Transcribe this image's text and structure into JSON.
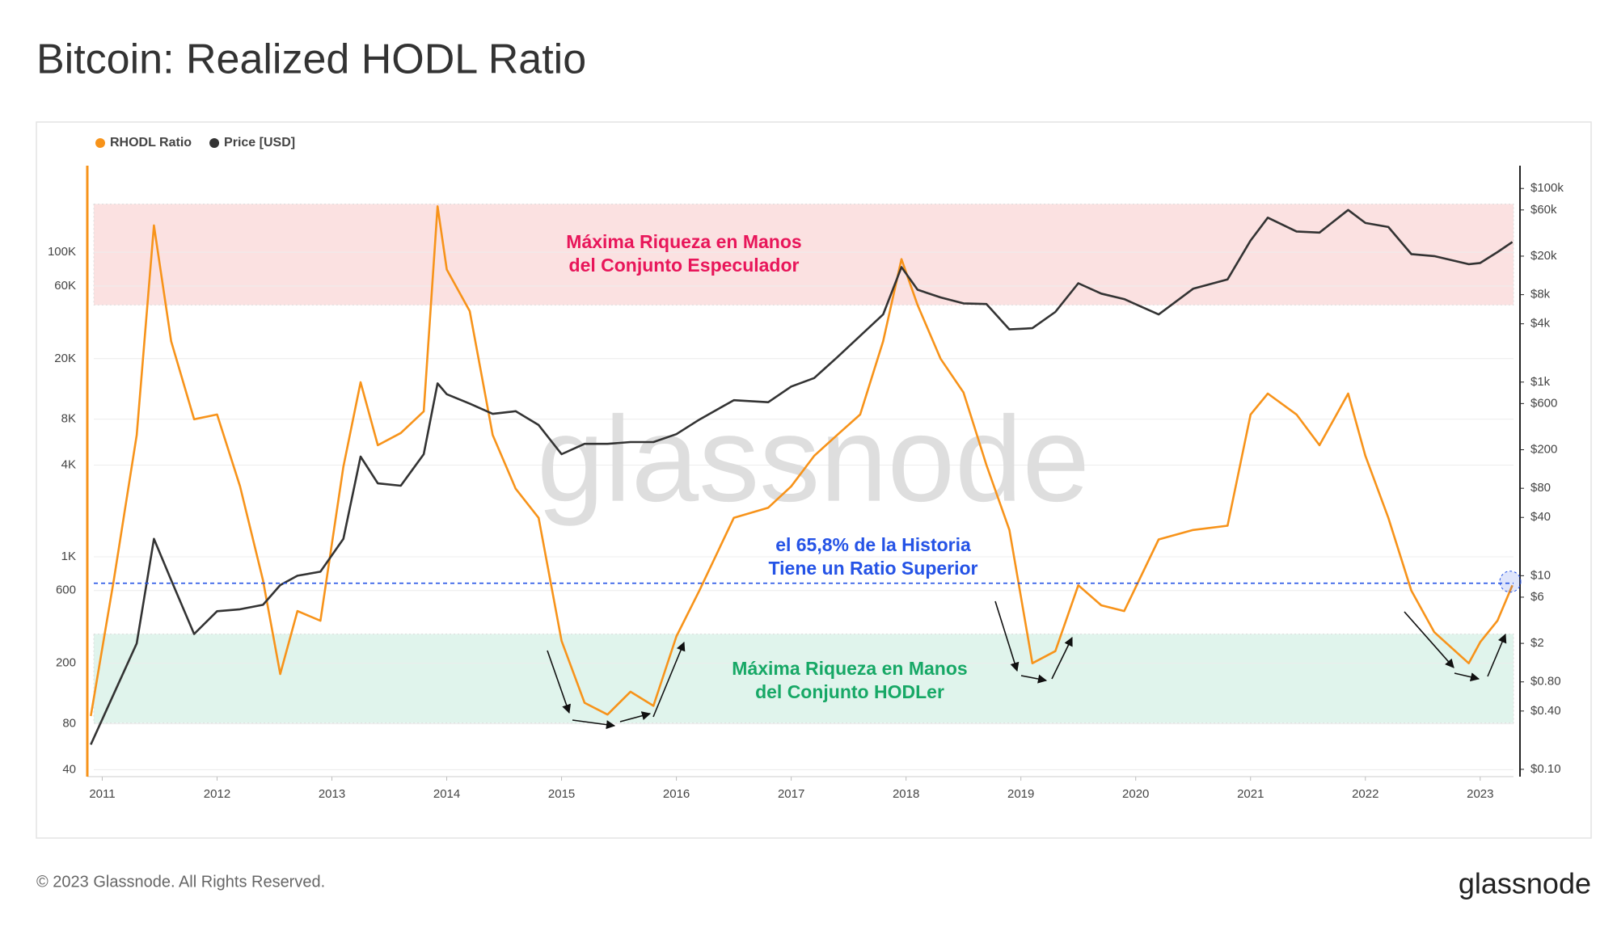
{
  "chart_data": {
    "type": "line",
    "title": "Bitcoin: Realized HODL Ratio",
    "watermark": "glassnode",
    "x": [
      2010.9,
      2011.1,
      2011.3,
      2011.45,
      2011.6,
      2011.8,
      2012.0,
      2012.2,
      2012.4,
      2012.55,
      2012.7,
      2012.9,
      2013.1,
      2013.25,
      2013.4,
      2013.6,
      2013.8,
      2013.92,
      2014.0,
      2014.2,
      2014.4,
      2014.6,
      2014.8,
      2015.0,
      2015.2,
      2015.4,
      2015.6,
      2015.8,
      2016.0,
      2016.2,
      2016.5,
      2016.8,
      2017.0,
      2017.2,
      2017.4,
      2017.6,
      2017.8,
      2017.96,
      2018.1,
      2018.3,
      2018.5,
      2018.7,
      2018.9,
      2019.1,
      2019.3,
      2019.5,
      2019.7,
      2019.9,
      2020.2,
      2020.5,
      2020.8,
      2021.0,
      2021.15,
      2021.4,
      2021.6,
      2021.85,
      2022.0,
      2022.2,
      2022.4,
      2022.6,
      2022.9,
      2023.0,
      2023.15,
      2023.28
    ],
    "series": [
      {
        "name": "RHODL Ratio",
        "color": "#f7931a",
        "axis": "y",
        "values": [
          90,
          700,
          6300,
          150000,
          26000,
          8000,
          8600,
          2900,
          700,
          170,
          440,
          380,
          3900,
          14000,
          5400,
          6500,
          9000,
          200000,
          77000,
          41000,
          6300,
          2800,
          1800,
          280,
          110,
          92,
          130,
          105,
          300,
          600,
          1800,
          2100,
          2900,
          4600,
          6300,
          8600,
          26000,
          90000,
          45000,
          20000,
          12000,
          4000,
          1500,
          200,
          240,
          650,
          480,
          440,
          1300,
          1500,
          1600,
          8600,
          11800,
          8600,
          5400,
          11800,
          4600,
          1800,
          600,
          320,
          200,
          275,
          380,
          650
        ]
      },
      {
        "name": "Price [USD]",
        "color": "#333333",
        "axis": "y2",
        "values": [
          0.18,
          0.6,
          2,
          24,
          9,
          2.5,
          4.3,
          4.5,
          5,
          8,
          10,
          11,
          24,
          170,
          90,
          85,
          180,
          970,
          750,
          600,
          470,
          500,
          360,
          180,
          230,
          230,
          240,
          240,
          290,
          410,
          650,
          620,
          900,
          1100,
          1800,
          3000,
          5000,
          15400,
          9000,
          7500,
          6500,
          6400,
          3500,
          3600,
          5300,
          10500,
          8200,
          7200,
          5000,
          9200,
          11500,
          29000,
          50000,
          36000,
          35000,
          60000,
          44000,
          40000,
          21000,
          20000,
          16500,
          17000,
          22000,
          28000
        ]
      }
    ],
    "xlim": [
      2010.87,
      2023.29
    ],
    "xticks": [
      2011,
      2012,
      2013,
      2014,
      2015,
      2016,
      2017,
      2018,
      2019,
      2020,
      2021,
      2022,
      2023
    ],
    "ylim": [
      36,
      370000
    ],
    "yticks": [
      40,
      80,
      200,
      600,
      {
        "value": 1000,
        "label": "1K"
      },
      {
        "value": 4000,
        "label": "4K"
      },
      {
        "value": 8000,
        "label": "8K"
      },
      {
        "value": 20000,
        "label": "20K"
      },
      {
        "value": 60000,
        "label": "60K"
      },
      {
        "value": 100000,
        "label": "100K"
      }
    ],
    "y_log": true,
    "y2lim": [
      0.084,
      172000
    ],
    "y2ticks": [
      {
        "value": 0.1,
        "label": "$0.10"
      },
      {
        "value": 0.4,
        "label": "$0.40"
      },
      {
        "value": 0.8,
        "label": "$0.80"
      },
      {
        "value": 2,
        "label": "$2"
      },
      {
        "value": 6,
        "label": "$6"
      },
      {
        "value": 10,
        "label": "$10"
      },
      {
        "value": 40,
        "label": "$40"
      },
      {
        "value": 80,
        "label": "$80"
      },
      {
        "value": 200,
        "label": "$200"
      },
      {
        "value": 600,
        "label": "$600"
      },
      {
        "value": 1000,
        "label": "$1k"
      },
      {
        "value": 4000,
        "label": "$4k"
      },
      {
        "value": 8000,
        "label": "$8k"
      },
      {
        "value": 20000,
        "label": "$20k"
      },
      {
        "value": 60000,
        "label": "$60k"
      },
      {
        "value": 100000,
        "label": "$100k"
      }
    ],
    "y2_log": true,
    "grid": true,
    "legend": "top-left",
    "bands": [
      {
        "label": [
          "Máxima Riqueza en Manos",
          "del Conjunto Especulador"
        ],
        "range": [
          45000,
          207000
        ],
        "color": "#fbe1e1",
        "text_color": "#e8165a"
      },
      {
        "label": [
          "Máxima Riqueza en Manos",
          "del Conjunto HODLer"
        ],
        "range": [
          81,
          311
        ],
        "color": "#e0f4ec",
        "text_color": "#17a866"
      }
    ],
    "reference_line": {
      "value": 670,
      "label": [
        "el 65,8% de la Historia",
        "Tiene un Ratio Superior"
      ],
      "color": "#2553e6"
    }
  },
  "footer": {
    "copyright": "© 2023 Glassnode. All Rights Reserved.",
    "logo": "glassnode"
  }
}
